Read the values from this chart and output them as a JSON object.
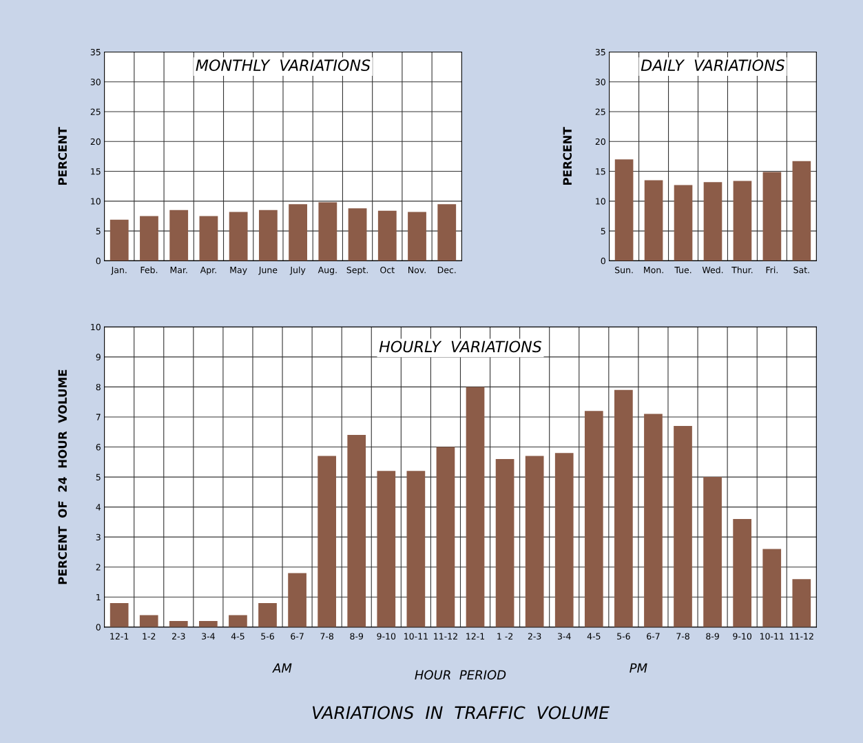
{
  "chart_data": [
    {
      "type": "bar",
      "title": "MONTHLY  VARIATIONS",
      "ylabel": "PERCENT",
      "categories": [
        "Jan.",
        "Feb.",
        "Mar.",
        "Apr.",
        "May",
        "June",
        "July",
        "Aug.",
        "Sept.",
        "Oct",
        "Nov.",
        "Dec."
      ],
      "values": [
        6.9,
        7.5,
        8.5,
        7.5,
        8.2,
        8.5,
        9.5,
        9.8,
        8.8,
        8.4,
        8.2,
        9.5
      ],
      "color": "#8c5c48",
      "ylim": [
        0,
        35
      ],
      "yticks": [
        0,
        5,
        10,
        15,
        20,
        25,
        30,
        35
      ],
      "grid": true
    },
    {
      "type": "bar",
      "title": "DAILY  VARIATIONS",
      "ylabel": "PERCENT",
      "categories": [
        "Sun.",
        "Mon.",
        "Tue.",
        "Wed.",
        "Thur.",
        "Fri.",
        "Sat."
      ],
      "values": [
        17.0,
        13.5,
        12.7,
        13.2,
        13.4,
        14.9,
        16.7
      ],
      "color": "#8c5c48",
      "ylim": [
        0,
        35
      ],
      "yticks": [
        0,
        5,
        10,
        15,
        20,
        25,
        30,
        35
      ],
      "grid": true
    },
    {
      "type": "bar",
      "title": "HOURLY  VARIATIONS",
      "xlabel": "HOUR  PERIOD",
      "ylabel": "PERCENT  OF  24  HOUR  VOLUME",
      "categories": [
        "12-1",
        "1-2",
        "2-3",
        "3-4",
        "4-5",
        "5-6",
        "6-7",
        "7-8",
        "8-9",
        "9-10",
        "10-11",
        "11-12",
        "12-1",
        "1 -2",
        "2-3",
        "3-4",
        "4-5",
        "5-6",
        "6-7",
        "7-8",
        "8-9",
        "9-10",
        "10-11",
        "11-12"
      ],
      "values": [
        0.8,
        0.4,
        0.2,
        0.2,
        0.4,
        0.8,
        1.8,
        5.7,
        6.4,
        5.2,
        5.2,
        6.0,
        8.0,
        5.6,
        5.7,
        5.8,
        7.2,
        7.9,
        7.1,
        6.7,
        5.0,
        3.6,
        2.6,
        1.6
      ],
      "color": "#8c5c48",
      "ylim": [
        0,
        10
      ],
      "yticks": [
        0,
        1,
        2,
        3,
        4,
        5,
        6,
        7,
        8,
        9,
        10
      ],
      "grid": true,
      "annotations": [
        "AM",
        "PM",
        "VARIATIONS  IN  TRAFFIC  VOLUME"
      ]
    }
  ]
}
